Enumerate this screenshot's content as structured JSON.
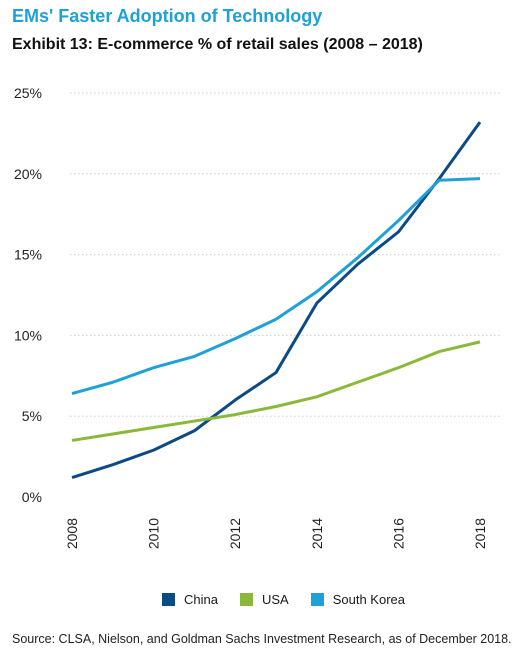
{
  "header": {
    "title": "EMs' Faster Adoption of Technology",
    "subtitle": "Exhibit 13: E-commerce % of retail sales (2008 – 2018)"
  },
  "source": "Source: CLSA, Nielson, and Goldman Sachs Investment Research, as of December 2018.",
  "colors": {
    "China": "#0b4a84",
    "USA": "#8ab83a",
    "South Korea": "#1ea1d8",
    "title": "#1ea1d8",
    "gridline": "#cccccc"
  },
  "chart_data": {
    "type": "line",
    "title": "",
    "xlabel": "",
    "ylabel": "",
    "x": [
      2008,
      2009,
      2010,
      2011,
      2012,
      2013,
      2014,
      2015,
      2016,
      2017,
      2018
    ],
    "x_tick_labels": [
      "2008",
      "2010",
      "2012",
      "2014",
      "2016",
      "2018"
    ],
    "y_tick_labels": [
      "0%",
      "5%",
      "10%",
      "15%",
      "20%",
      "25%"
    ],
    "ylim": [
      0,
      25
    ],
    "grid": "horizontal dotted",
    "legend_position": "bottom",
    "series": [
      {
        "name": "China",
        "values": [
          1.2,
          2.0,
          2.9,
          4.1,
          6.0,
          7.7,
          12.0,
          14.4,
          16.4,
          19.7,
          23.2
        ]
      },
      {
        "name": "USA",
        "values": [
          3.5,
          3.9,
          4.3,
          4.7,
          5.1,
          5.6,
          6.2,
          7.1,
          8.0,
          9.0,
          9.6
        ]
      },
      {
        "name": "South Korea",
        "values": [
          6.4,
          7.1,
          8.0,
          8.7,
          9.8,
          11.0,
          12.7,
          14.8,
          17.1,
          19.6,
          19.7
        ]
      }
    ]
  }
}
